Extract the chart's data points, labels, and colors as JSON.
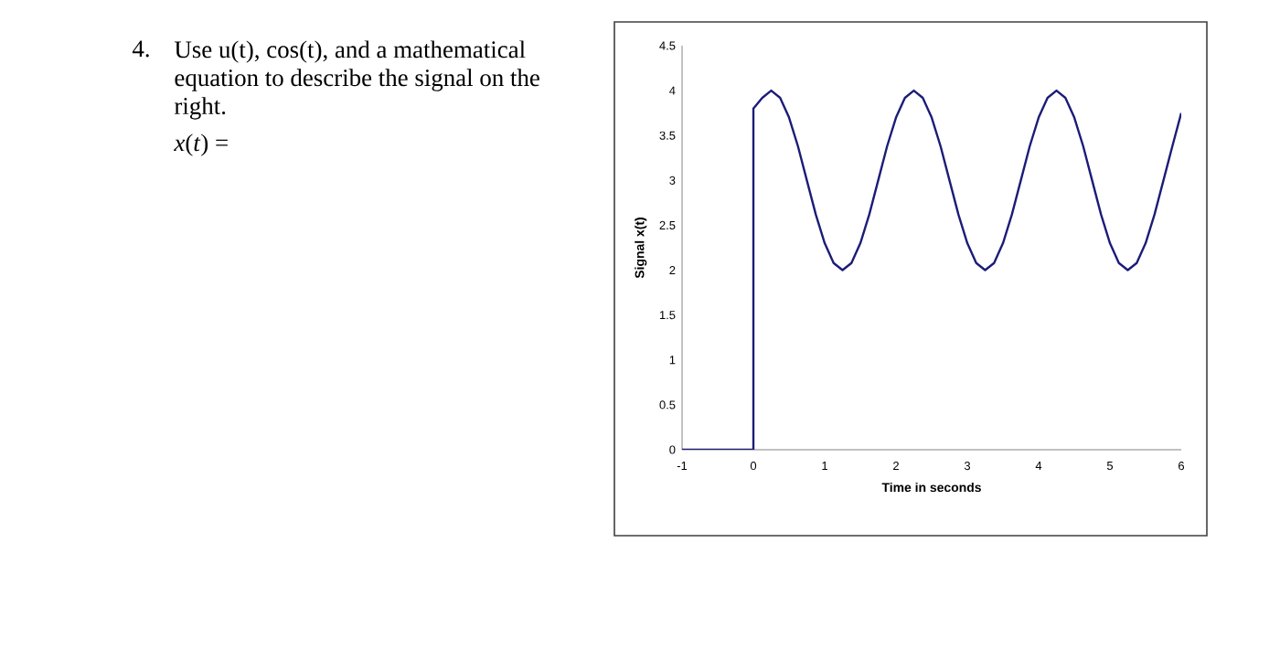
{
  "chart_data": {
    "type": "line",
    "xlabel": "Time in seconds",
    "ylabel": "Signal x(t)",
    "annotations": [
      "4.",
      "Use u(t), cos(t), and a mathematical equation to describe the signal on the right.",
      "*x*(*t*) ="
    ],
    "x": [
      -1,
      0,
      0,
      0.125,
      0.25,
      0.375,
      0.5,
      0.625,
      0.75,
      0.875,
      1,
      1.125,
      1.25,
      1.375,
      1.5,
      1.625,
      1.75,
      1.875,
      2,
      2.125,
      2.25,
      2.375,
      2.5,
      2.625,
      2.75,
      2.875,
      3,
      3.125,
      3.25,
      3.375,
      3.5,
      3.625,
      3.75,
      3.875,
      4,
      4.125,
      4.25,
      4.375,
      4.5,
      4.625,
      4.75,
      4.875,
      5,
      5.125,
      5.25,
      5.375,
      5.5,
      5.625,
      5.75,
      5.875,
      6
    ],
    "series": [
      {
        "color": "#1c1c78",
        "values": [
          0,
          0,
          3.8,
          3.92,
          4,
          3.92,
          3.7,
          3.38,
          3,
          2.62,
          2.3,
          2.08,
          2,
          2.08,
          2.3,
          2.62,
          3,
          3.38,
          3.7,
          3.92,
          4,
          3.92,
          3.7,
          3.38,
          3,
          2.62,
          2.3,
          2.08,
          2,
          2.08,
          2.3,
          2.62,
          3,
          3.38,
          3.7,
          3.92,
          4,
          3.92,
          3.7,
          3.38,
          3,
          2.62,
          2.3,
          2.08,
          2,
          2.08,
          2.3,
          2.62,
          3,
          3.38,
          3.75
        ]
      }
    ],
    "xlim": [
      -1,
      6
    ],
    "xticks": [
      -1,
      0,
      1,
      2,
      3,
      4,
      5,
      6
    ],
    "ylim": [
      0,
      4.5
    ],
    "yticks": [
      0,
      0.5,
      1,
      1.5,
      2,
      2.5,
      3,
      3.5,
      4,
      4.5
    ],
    "marker": "none",
    "line_style": "solid"
  }
}
